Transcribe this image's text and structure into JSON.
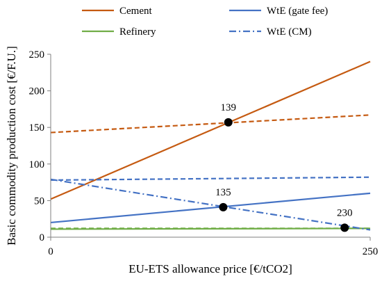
{
  "chart_data": {
    "type": "line",
    "xlabel": "EU-ETS allowance price [€/tCO2]",
    "ylabel": "Basic commodity production cost [€/F.U.]",
    "xlim": [
      0,
      250
    ],
    "ylim": [
      0,
      250
    ],
    "x_ticks": [
      0,
      250
    ],
    "y_ticks": [
      0,
      50,
      100,
      150,
      200,
      250
    ],
    "grid": false,
    "legend_position": "top",
    "series": [
      {
        "name": "Cement",
        "color": "#C55A11",
        "dash": "solid",
        "points": [
          [
            0,
            52
          ],
          [
            250,
            240
          ]
        ]
      },
      {
        "name": "",
        "color": "#C55A11",
        "dash": "dashed",
        "points": [
          [
            0,
            143
          ],
          [
            250,
            167
          ]
        ]
      },
      {
        "name": "Refinery",
        "color": "#70AD47",
        "dash": "solid",
        "points": [
          [
            0,
            11
          ],
          [
            250,
            12
          ]
        ]
      },
      {
        "name": "",
        "color": "#70AD47",
        "dash": "dashed",
        "points": [
          [
            0,
            12
          ],
          [
            250,
            12
          ]
        ]
      },
      {
        "name": "WtE (gate fee)",
        "color": "#4472C4",
        "dash": "solid",
        "points": [
          [
            0,
            20
          ],
          [
            250,
            60
          ]
        ]
      },
      {
        "name": "",
        "color": "#4472C4",
        "dash": "dashed",
        "points": [
          [
            0,
            78
          ],
          [
            250,
            82
          ]
        ]
      },
      {
        "name": "WtE (CM)",
        "color": "#4472C4",
        "dash": "dashdot",
        "points": [
          [
            0,
            79
          ],
          [
            250,
            10
          ]
        ]
      }
    ],
    "annotations": [
      {
        "label": "139",
        "x": 139,
        "y": 157
      },
      {
        "label": "135",
        "x": 135,
        "y": 41
      },
      {
        "label": "230",
        "x": 230,
        "y": 13
      }
    ]
  }
}
